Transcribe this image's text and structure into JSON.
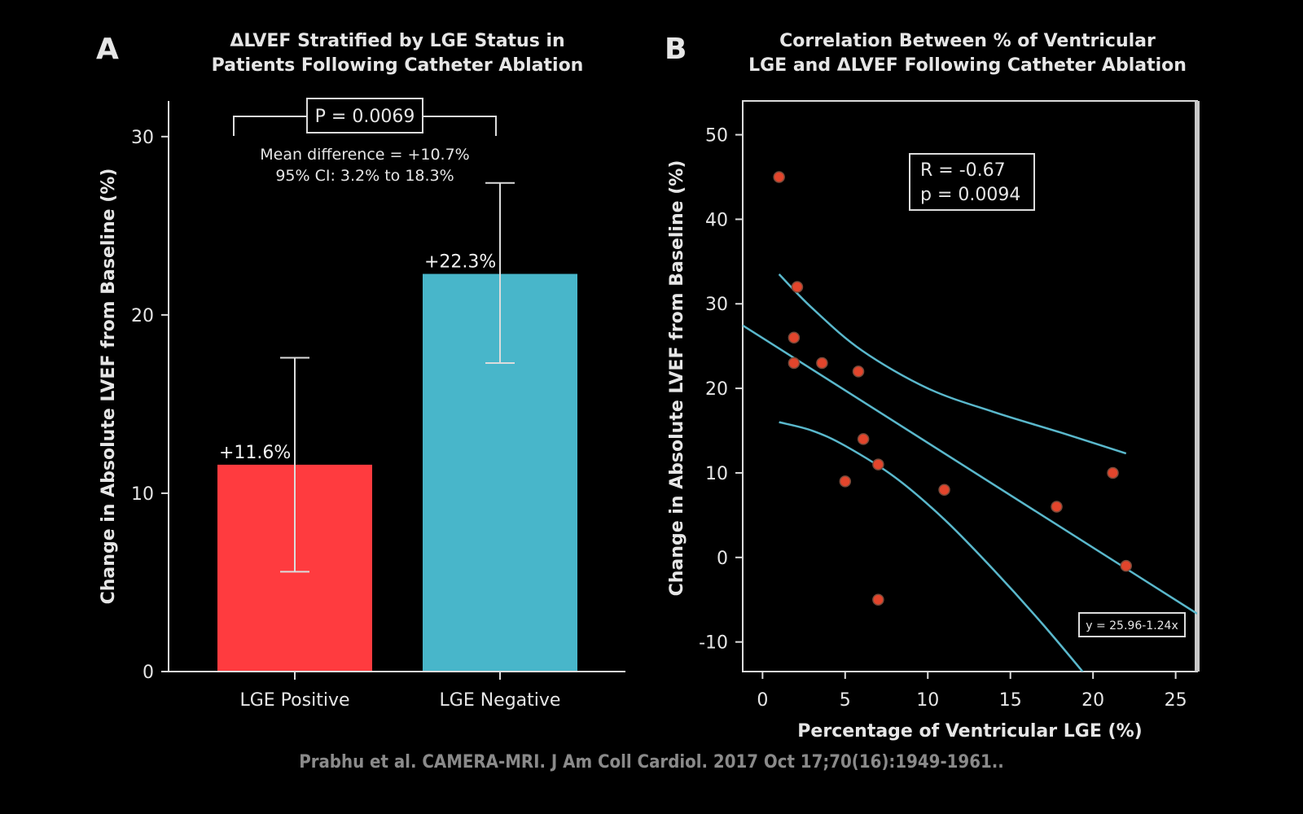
{
  "chart_data": [
    {
      "panel": "A",
      "type": "bar",
      "title_lines": [
        "ΔLVEF Stratified by LGE Status in",
        "Patients Following Catheter Ablation"
      ],
      "xlabel": "",
      "ylabel": "Change in Absolute LVEF from Baseline (%)",
      "ylim": [
        0,
        32
      ],
      "yticks": [
        0,
        10,
        20,
        30
      ],
      "categories": [
        "LGE Positive",
        "LGE Negative"
      ],
      "values": [
        11.6,
        22.3
      ],
      "value_labels": [
        "+11.6%",
        "+22.3%"
      ],
      "error_low": [
        5.6,
        17.3
      ],
      "error_high": [
        17.6,
        27.4
      ],
      "colors": [
        "#ff3b3f",
        "#48b6ca"
      ],
      "p_value_label": "P = 0.0069",
      "annotation_lines": [
        "Mean difference = +10.7%",
        "95% CI: 3.2% to 18.3%"
      ]
    },
    {
      "panel": "B",
      "type": "scatter",
      "title_lines": [
        "Correlation Between % of Ventricular",
        "LGE and ΔLVEF Following Catheter Ablation"
      ],
      "xlabel": "Percentage of Ventricular LGE (%)",
      "ylabel": "Change in Absolute LVEF from Baseline (%)",
      "xlim": [
        -1.2,
        26.3
      ],
      "ylim": [
        -13.5,
        54
      ],
      "xticks": [
        0,
        5,
        10,
        15,
        20,
        25
      ],
      "yticks": [
        -10,
        0,
        10,
        20,
        30,
        40,
        50
      ],
      "points": [
        [
          1.0,
          45
        ],
        [
          2.1,
          32
        ],
        [
          1.9,
          26
        ],
        [
          1.9,
          23
        ],
        [
          3.6,
          23
        ],
        [
          5.8,
          22
        ],
        [
          6.1,
          14
        ],
        [
          7.0,
          11
        ],
        [
          5.0,
          9
        ],
        [
          11.0,
          8
        ],
        [
          17.8,
          6
        ],
        [
          21.2,
          10
        ],
        [
          22.0,
          -1
        ],
        [
          7.0,
          -5
        ]
      ],
      "point_color": "#e2452c",
      "line_color": "#5ab8cc",
      "regression": {
        "intercept": 25.96,
        "slope": -1.24
      },
      "ci_upper": [
        [
          1.0,
          33.5
        ],
        [
          3.0,
          29.5
        ],
        [
          6.0,
          24.5
        ],
        [
          10.0,
          20.0
        ],
        [
          14.0,
          17.2
        ],
        [
          18.0,
          14.8
        ],
        [
          22.0,
          12.3
        ]
      ],
      "ci_lower": [
        [
          1.0,
          16.0
        ],
        [
          3.0,
          15.0
        ],
        [
          5.0,
          13.2
        ],
        [
          8.0,
          9.5
        ],
        [
          11.0,
          4.5
        ],
        [
          14.0,
          -1.5
        ],
        [
          17.0,
          -8.0
        ],
        [
          20.0,
          -15.0
        ],
        [
          21.0,
          -17.5
        ]
      ],
      "stat_lines": [
        "R = -0.67",
        "p = 0.0094"
      ],
      "equation": "y = 25.96-1.24x"
    }
  ],
  "citation": "Prabhu et al. CAMERA-MRI. J Am Coll Cardiol. 2017 Oct 17;70(16):1949-1961.."
}
